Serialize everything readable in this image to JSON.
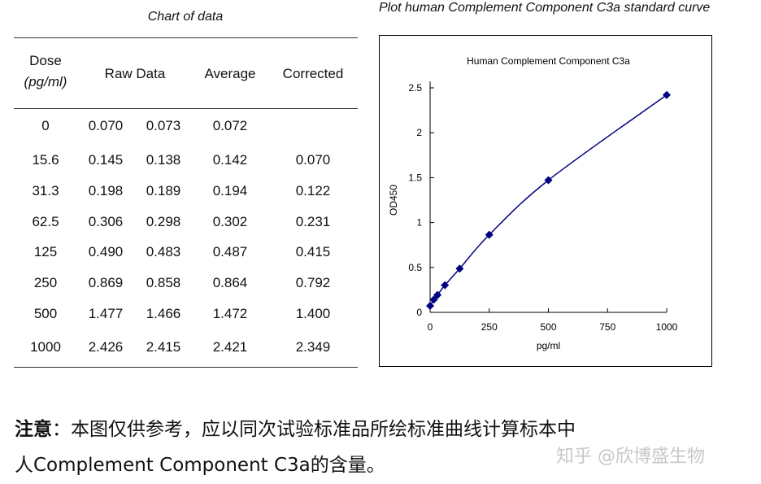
{
  "table": {
    "title": "Chart of data",
    "headers": {
      "dose": "Dose",
      "dose_unit": "(pg/ml)",
      "raw": "Raw Data",
      "average": "Average",
      "corrected": "Corrected"
    },
    "rows": [
      {
        "dose": "0",
        "raw1": "0.070",
        "raw2": "0.073",
        "avg": "0.072",
        "corr": ""
      },
      {
        "dose": "15.6",
        "raw1": "0.145",
        "raw2": "0.138",
        "avg": "0.142",
        "corr": "0.070"
      },
      {
        "dose": "31.3",
        "raw1": "0.198",
        "raw2": "0.189",
        "avg": "0.194",
        "corr": "0.122"
      },
      {
        "dose": "62.5",
        "raw1": "0.306",
        "raw2": "0.298",
        "avg": "0.302",
        "corr": "0.231"
      },
      {
        "dose": "125",
        "raw1": "0.490",
        "raw2": "0.483",
        "avg": "0.487",
        "corr": "0.415"
      },
      {
        "dose": "250",
        "raw1": "0.869",
        "raw2": "0.858",
        "avg": "0.864",
        "corr": "0.792"
      },
      {
        "dose": "500",
        "raw1": "1.477",
        "raw2": "1.466",
        "avg": "1.472",
        "corr": "1.400"
      },
      {
        "dose": "1000",
        "raw1": "2.426",
        "raw2": "2.415",
        "avg": "2.421",
        "corr": "2.349"
      }
    ]
  },
  "chart_caption": "Plot human Complement Component C3a standard curve",
  "chart_data": {
    "type": "scatter",
    "title": "Human Complement Component C3a",
    "xlabel": "pg/ml",
    "ylabel": "OD450",
    "xlim": [
      0,
      1000
    ],
    "ylim": [
      0,
      2.5
    ],
    "xticks": [
      "0",
      "250",
      "500",
      "750",
      "1000"
    ],
    "yticks": [
      "0",
      "0.5",
      "1",
      "1.5",
      "2",
      "2.5"
    ],
    "x": [
      0,
      15.6,
      31.3,
      62.5,
      125,
      250,
      500,
      1000
    ],
    "y": [
      0.072,
      0.142,
      0.194,
      0.302,
      0.487,
      0.864,
      1.472,
      2.421
    ],
    "marker": "diamond",
    "line": "smooth curve",
    "color": "#000080",
    "grid": false,
    "legend": "none"
  },
  "note": {
    "label": "注意",
    "line1": "：本图仅供参考，应以同次试验标准品所绘标准曲线计算标本中",
    "line2": "人Complement Component C3a的含量。"
  },
  "watermark": "知乎 @欣博盛生物"
}
